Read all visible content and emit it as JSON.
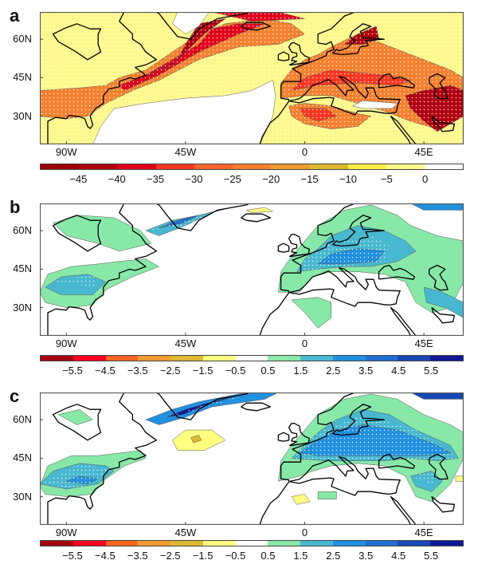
{
  "panels": [
    {
      "label": "a",
      "colorbar": {
        "ticks": [
          "−45",
          "−40",
          "−35",
          "−30",
          "−25",
          "−20",
          "−15",
          "−10",
          "−5",
          "0"
        ],
        "colors": [
          "#9b0008",
          "#b00010",
          "#e0001a",
          "#fb3520",
          "#f8652a",
          "#f5802e",
          "#f09a30",
          "#ddb830",
          "#fbf040",
          "#fdf88a",
          "#ffffff"
        ]
      }
    },
    {
      "label": "b",
      "colorbar": {
        "ticks": [
          "−5.5",
          "−4.5",
          "−3.5",
          "−2.5",
          "−1.5",
          "−0.5",
          "0.5",
          "1.5",
          "2.5",
          "3.5",
          "4.5",
          "5.5"
        ],
        "colors": [
          "#a50010",
          "#ff0020",
          "#ff6420",
          "#f09a30",
          "#ddb830",
          "#ffff80",
          "#ffffff",
          "#88e8a8",
          "#48b8d0",
          "#2090e0",
          "#2070d0",
          "#1848b8",
          "#101898"
        ]
      }
    },
    {
      "label": "c",
      "colorbar": {
        "ticks": [
          "−5.5",
          "−4.5",
          "−3.5",
          "−2.5",
          "−1.5",
          "−0.5",
          "0.5",
          "1.5",
          "2.5",
          "3.5",
          "4.5",
          "5.5"
        ],
        "colors": [
          "#a50010",
          "#ff0020",
          "#ff6420",
          "#f09a30",
          "#ddb830",
          "#ffff80",
          "#ffffff",
          "#88e8a8",
          "#48b8d0",
          "#2090e0",
          "#2070d0",
          "#1848b8",
          "#101898"
        ]
      }
    }
  ],
  "lon_ticks": [
    {
      "label": "90W",
      "lon": -90
    },
    {
      "label": "45W",
      "lon": -45
    },
    {
      "label": "0",
      "lon": 0
    },
    {
      "label": "45E",
      "lon": 45
    }
  ],
  "lat_ticks": [
    {
      "label": "60N",
      "lat": 60
    },
    {
      "label": "45N",
      "lat": 45
    },
    {
      "label": "30N",
      "lat": 30
    }
  ],
  "map_extent": {
    "lon": [
      -100,
      60
    ],
    "lat": [
      19,
      70.6
    ]
  }
}
